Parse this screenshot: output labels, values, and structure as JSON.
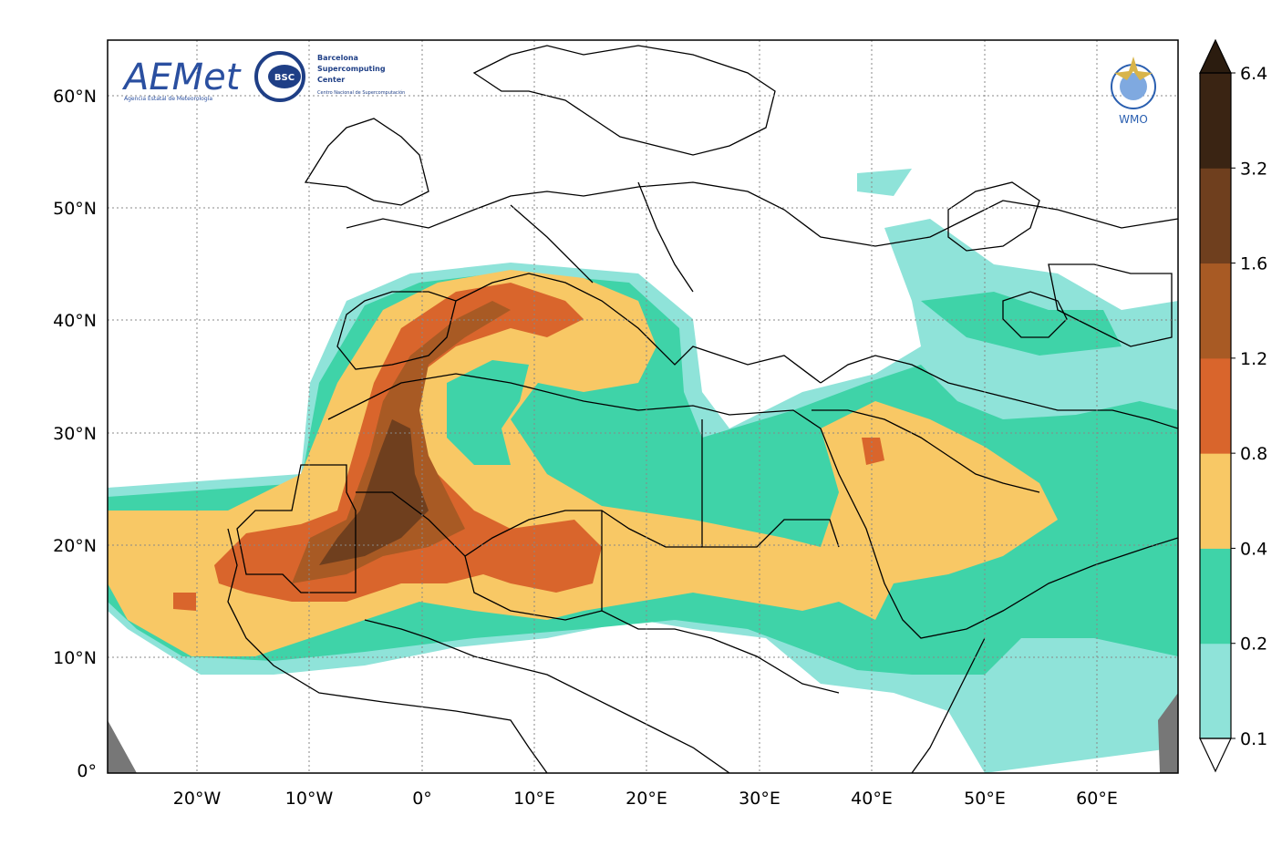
{
  "logos": {
    "aemet": "AEMet",
    "aemet_sub": "Agencia Estatal de Meteorología",
    "bsc_badge": "BSC",
    "bsc_line1": "Barcelona",
    "bsc_line2": "Supercomputing",
    "bsc_line3": "Center",
    "bsc_sub": "Centro Nacional de Supercomputación",
    "wmo": "WMO"
  },
  "map": {
    "lat_labels": [
      "60°N",
      "50°N",
      "40°N",
      "30°N",
      "20°N",
      "10°N",
      "0°"
    ],
    "lon_labels": [
      "20°W",
      "10°W",
      "0°",
      "10°E",
      "20°E",
      "30°E",
      "40°E",
      "50°E",
      "60°E"
    ],
    "gridlines": true,
    "extent": {
      "lon_min": -28,
      "lon_max": 67,
      "lat_min": 0,
      "lat_max": 65
    }
  },
  "colorbar": {
    "levels": [
      {
        "label": "0.1",
        "color": "#8fe3d9"
      },
      {
        "label": "0.2",
        "color": "#3fd3a8"
      },
      {
        "label": "0.4",
        "color": "#f8c865"
      },
      {
        "label": "0.8",
        "color": "#d9652c"
      },
      {
        "label": "1.2",
        "color": "#a85a24"
      },
      {
        "label": "1.6",
        "color": "#6f3f1e"
      },
      {
        "label": "3.2",
        "color": "#3a2413"
      },
      {
        "label": "6.4",
        "color": "#2b1c0f"
      }
    ],
    "extend": "both"
  }
}
